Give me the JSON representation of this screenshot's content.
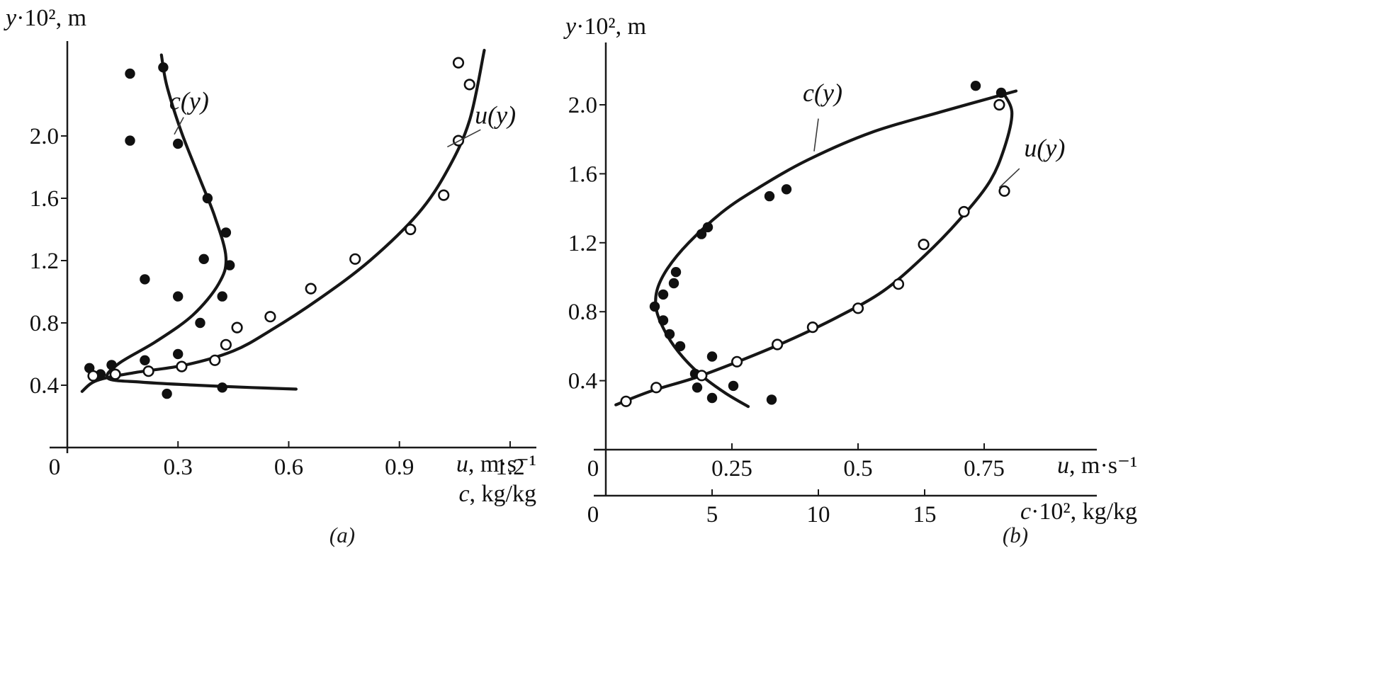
{
  "figure": {
    "background": "#ffffff",
    "ink_color": "#111111",
    "curve_color": "#161616"
  },
  "chart_data": [
    {
      "id": "a",
      "type": "scatter",
      "caption": "(a)",
      "y_axis": {
        "label": {
          "var": "y",
          "rest": "·10², m"
        },
        "ticks": [
          "0.4",
          "0.8",
          "1.2",
          "1.6",
          "2.0"
        ],
        "range": [
          0,
          2.6
        ]
      },
      "x_axes": [
        {
          "id": "u",
          "origin": "0",
          "ticks": [
            "0.3",
            "0.6",
            "0.9",
            "1.2"
          ],
          "range": [
            0,
            1.27
          ],
          "label": {
            "var": "u",
            "rest": ", m·s⁻¹"
          },
          "label2": {
            "var": "c",
            "rest": ", kg/kg"
          }
        }
      ],
      "series": [
        {
          "name": "c(y)",
          "x_axis": "u",
          "marker": "filled",
          "points": [
            [
              0.06,
              0.51
            ],
            [
              0.09,
              0.47
            ],
            [
              0.12,
              0.53
            ],
            [
              0.21,
              0.56
            ],
            [
              0.3,
              0.6
            ],
            [
              0.27,
              0.345
            ],
            [
              0.42,
              0.385
            ],
            [
              0.17,
              1.97
            ],
            [
              0.21,
              1.08
            ],
            [
              0.36,
              0.8
            ],
            [
              0.42,
              0.97
            ],
            [
              0.3,
              0.97
            ],
            [
              0.44,
              1.17
            ],
            [
              0.37,
              1.21
            ],
            [
              0.43,
              1.38
            ],
            [
              0.38,
              1.6
            ],
            [
              0.3,
              1.95
            ],
            [
              0.26,
              2.44
            ],
            [
              0.17,
              2.4
            ]
          ],
          "curve": [
            [
              0.62,
              0.375
            ],
            [
              0.5,
              0.385
            ],
            [
              0.35,
              0.4
            ],
            [
              0.2,
              0.42
            ],
            [
              0.11,
              0.445
            ],
            [
              0.14,
              0.54
            ],
            [
              0.24,
              0.68
            ],
            [
              0.34,
              0.85
            ],
            [
              0.41,
              1.05
            ],
            [
              0.43,
              1.22
            ],
            [
              0.4,
              1.48
            ],
            [
              0.36,
              1.72
            ],
            [
              0.31,
              2.02
            ],
            [
              0.27,
              2.32
            ],
            [
              0.255,
              2.52
            ]
          ],
          "label": {
            "text": "c(y)",
            "at": [
              0.33,
              2.17
            ],
            "leader": [
              [
                0.315,
                2.12
              ],
              [
                0.29,
                2.01
              ]
            ]
          }
        },
        {
          "name": "u(y)",
          "x_axis": "u",
          "marker": "open",
          "points": [
            [
              0.07,
              0.46
            ],
            [
              0.13,
              0.47
            ],
            [
              0.22,
              0.49
            ],
            [
              0.31,
              0.52
            ],
            [
              0.4,
              0.56
            ],
            [
              0.43,
              0.66
            ],
            [
              0.46,
              0.77
            ],
            [
              0.55,
              0.84
            ],
            [
              0.66,
              1.02
            ],
            [
              0.78,
              1.21
            ],
            [
              0.93,
              1.4
            ],
            [
              1.02,
              1.62
            ],
            [
              1.06,
              1.97
            ],
            [
              1.09,
              2.33
            ],
            [
              1.06,
              2.47
            ]
          ],
          "curve": [
            [
              0.04,
              0.36
            ],
            [
              0.08,
              0.43
            ],
            [
              0.18,
              0.48
            ],
            [
              0.32,
              0.53
            ],
            [
              0.45,
              0.62
            ],
            [
              0.55,
              0.75
            ],
            [
              0.68,
              0.95
            ],
            [
              0.82,
              1.2
            ],
            [
              0.95,
              1.5
            ],
            [
              1.03,
              1.78
            ],
            [
              1.09,
              2.1
            ],
            [
              1.13,
              2.55
            ]
          ],
          "label": {
            "text": "u(y)",
            "at": [
              1.16,
              2.08
            ],
            "leader": [
              [
                1.12,
                2.04
              ],
              [
                1.03,
                1.93
              ]
            ]
          }
        }
      ]
    },
    {
      "id": "b",
      "type": "scatter",
      "caption": "(b)",
      "y_axis": {
        "label": {
          "var": "y",
          "rest": "·10², m"
        },
        "ticks": [
          "0.4",
          "0.8",
          "1.2",
          "1.6",
          "2.0"
        ],
        "range": [
          0,
          2.36
        ]
      },
      "x_axes": [
        {
          "id": "u",
          "origin": "0",
          "ticks": [
            "0.25",
            "0.5",
            "0.75"
          ],
          "range": [
            0,
            0.97
          ],
          "label": {
            "var": "u",
            "rest": ", m·s⁻¹"
          }
        },
        {
          "id": "c",
          "origin": "0",
          "ticks": [
            "5",
            "10",
            "15"
          ],
          "range": [
            0,
            23
          ],
          "label": {
            "var": "c",
            "rest": "·10², kg/kg"
          }
        }
      ],
      "series": [
        {
          "name": "c(y)",
          "x_axis": "c",
          "marker": "filled",
          "points": [
            [
              5.0,
              0.3
            ],
            [
              7.8,
              0.29
            ],
            [
              6.0,
              0.37
            ],
            [
              4.3,
              0.36
            ],
            [
              4.2,
              0.44
            ],
            [
              5.0,
              0.54
            ],
            [
              3.5,
              0.6
            ],
            [
              3.0,
              0.67
            ],
            [
              2.7,
              0.75
            ],
            [
              2.3,
              0.83
            ],
            [
              2.7,
              0.9
            ],
            [
              3.2,
              0.965
            ],
            [
              3.3,
              1.03
            ],
            [
              4.5,
              1.25
            ],
            [
              4.8,
              1.29
            ],
            [
              7.7,
              1.47
            ],
            [
              8.5,
              1.51
            ],
            [
              17.4,
              2.11
            ],
            [
              18.6,
              2.07
            ]
          ],
          "curve": [
            [
              6.7,
              0.25
            ],
            [
              5.6,
              0.33
            ],
            [
              4.5,
              0.43
            ],
            [
              3.6,
              0.54
            ],
            [
              2.9,
              0.66
            ],
            [
              2.4,
              0.8
            ],
            [
              2.4,
              0.92
            ],
            [
              2.9,
              1.05
            ],
            [
              3.9,
              1.2
            ],
            [
              5.5,
              1.38
            ],
            [
              7.2,
              1.52
            ],
            [
              9.5,
              1.68
            ],
            [
              12.5,
              1.84
            ],
            [
              15.8,
              1.96
            ],
            [
              19.3,
              2.08
            ]
          ],
          "label": {
            "text": "c(y)",
            "at": [
              10.2,
              2.02
            ],
            "leader": [
              [
                10.0,
                1.92
              ],
              [
                9.8,
                1.73
              ]
            ]
          }
        },
        {
          "name": "u(y)",
          "x_axis": "u",
          "marker": "open",
          "points": [
            [
              0.04,
              0.28
            ],
            [
              0.1,
              0.36
            ],
            [
              0.19,
              0.43
            ],
            [
              0.26,
              0.51
            ],
            [
              0.34,
              0.61
            ],
            [
              0.41,
              0.71
            ],
            [
              0.5,
              0.82
            ],
            [
              0.58,
              0.96
            ],
            [
              0.63,
              1.19
            ],
            [
              0.71,
              1.38
            ],
            [
              0.79,
              1.5
            ],
            [
              0.78,
              2.0
            ]
          ],
          "curve": [
            [
              0.02,
              0.26
            ],
            [
              0.09,
              0.34
            ],
            [
              0.18,
              0.42
            ],
            [
              0.27,
              0.52
            ],
            [
              0.36,
              0.63
            ],
            [
              0.46,
              0.77
            ],
            [
              0.55,
              0.92
            ],
            [
              0.63,
              1.12
            ],
            [
              0.7,
              1.33
            ],
            [
              0.76,
              1.55
            ],
            [
              0.79,
              1.75
            ],
            [
              0.805,
              1.95
            ],
            [
              0.79,
              2.06
            ]
          ],
          "label": {
            "text": "u(y)",
            "at": [
              0.87,
              1.7
            ],
            "leader": [
              [
                0.82,
                1.63
              ],
              [
                0.78,
                1.52
              ]
            ]
          }
        }
      ]
    }
  ]
}
